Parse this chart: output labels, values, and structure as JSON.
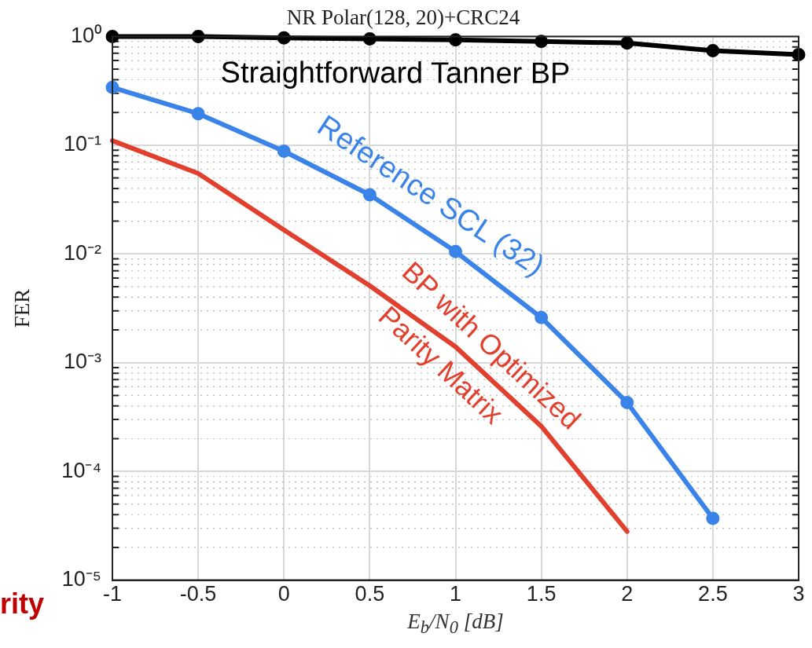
{
  "chart_data": {
    "type": "line",
    "title": "NR Polar(128, 20)+CRC24",
    "xlabel": "E$_{b}$/N$_{0}$ [dB]",
    "ylabel": "FER",
    "x": [
      -1,
      -0.5,
      0,
      0.5,
      1,
      1.5,
      2,
      2.5,
      3
    ],
    "series": [
      {
        "name": "Straightforward Tanner BP",
        "color": "#000000",
        "marker": "circle",
        "values": [
          1,
          1,
          0.97,
          0.95,
          0.93,
          0.9,
          0.87,
          0.74,
          0.68
        ]
      },
      {
        "name": "Reference SCL (32)",
        "color": "#3a83e8",
        "marker": "circle",
        "values": [
          0.34,
          0.195,
          0.088,
          0.035,
          0.0105,
          0.0026,
          0.00043,
          3.7e-05,
          null
        ]
      },
      {
        "name": "BP with Optimized Parity Matrix",
        "color": "#e2402f",
        "marker": "none",
        "values": [
          0.11,
          0.055,
          0.0166,
          0.0051,
          0.0014,
          0.00026,
          2.8e-05,
          null,
          null
        ]
      }
    ],
    "log": "y",
    "xlim": [
      -1,
      3
    ],
    "xticks": [
      -1,
      -0.5,
      0,
      0.5,
      1,
      1.5,
      2,
      2.5,
      3
    ],
    "ylim": [
      1e-05,
      1
    ],
    "yticks": [
      {
        "value": 1e-05,
        "label": "10⁻⁵"
      },
      {
        "value": 0.0001,
        "label": "10⁻⁴"
      },
      {
        "value": 0.001,
        "label": "10⁻³"
      },
      {
        "value": 0.01,
        "label": "10⁻²"
      },
      {
        "value": 0.1,
        "label": "10⁻¹"
      },
      {
        "value": 1,
        "label": "10⁰"
      }
    ],
    "grid": true,
    "legend": false,
    "line_style": "solid",
    "annotations": [
      "rity"
    ]
  }
}
